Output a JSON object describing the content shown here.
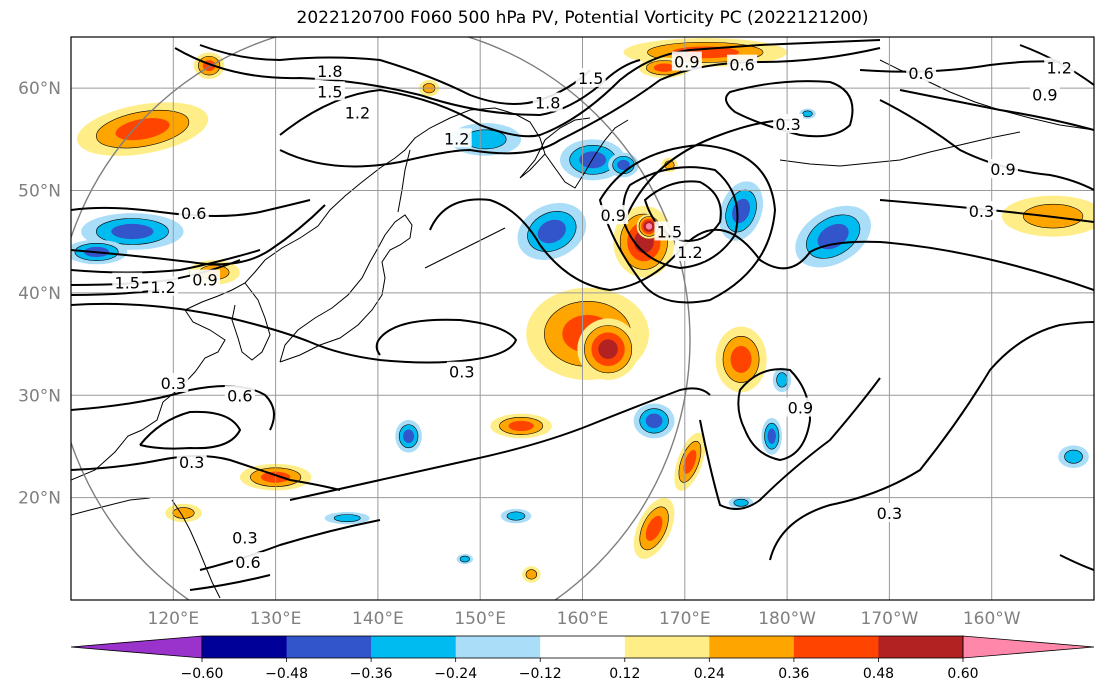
{
  "title": "2022120700 F060 500 hPa PV, Potential Vorticity PC (2022121200)",
  "map": {
    "lon_range_deg_east": [
      110,
      210
    ],
    "lat_range_deg": [
      10,
      65
    ],
    "gridlines": true,
    "lat_ticks": [
      {
        "lat": 60,
        "label": "60°N"
      },
      {
        "lat": 50,
        "label": "50°N"
      },
      {
        "lat": 40,
        "label": "40°N"
      },
      {
        "lat": 30,
        "label": "30°N"
      },
      {
        "lat": 20,
        "label": "20°N"
      }
    ],
    "lon_ticks": [
      {
        "lon": 120,
        "label": "120°E"
      },
      {
        "lon": 130,
        "label": "130°E"
      },
      {
        "lon": 140,
        "label": "140°E"
      },
      {
        "lon": 150,
        "label": "150°E"
      },
      {
        "lon": 160,
        "label": "160°E"
      },
      {
        "lon": 170,
        "label": "170°E"
      },
      {
        "lon": 180,
        "label": "180°W"
      },
      {
        "lon": 190,
        "label": "170°W"
      },
      {
        "lon": 200,
        "label": "160°W"
      }
    ],
    "contour_labels": [
      {
        "text": "1.8",
        "lon": 135.3,
        "lat": 61.7
      },
      {
        "text": "1.5",
        "lon": 135.3,
        "lat": 59.7
      },
      {
        "text": "1.2",
        "lon": 138.0,
        "lat": 57.6
      },
      {
        "text": "1.2",
        "lon": 147.7,
        "lat": 55.1
      },
      {
        "text": "1.8",
        "lon": 156.6,
        "lat": 58.6
      },
      {
        "text": "1.5",
        "lon": 160.8,
        "lat": 61.0
      },
      {
        "text": "0.9",
        "lon": 170.2,
        "lat": 62.6
      },
      {
        "text": "0.6",
        "lon": 175.6,
        "lat": 62.3
      },
      {
        "text": "0.6",
        "lon": 193.1,
        "lat": 61.5
      },
      {
        "text": "1.2",
        "lon": 206.6,
        "lat": 62.0
      },
      {
        "text": "0.9",
        "lon": 205.2,
        "lat": 59.4
      },
      {
        "text": "0.3",
        "lon": 180.1,
        "lat": 56.5
      },
      {
        "text": "0.9",
        "lon": 201.1,
        "lat": 52.1
      },
      {
        "text": "0.3",
        "lon": 199.0,
        "lat": 48.0
      },
      {
        "text": "0.9",
        "lon": 163.0,
        "lat": 47.6
      },
      {
        "text": "1.5",
        "lon": 168.5,
        "lat": 46.0
      },
      {
        "text": "1.2",
        "lon": 170.5,
        "lat": 44.0
      },
      {
        "text": "0.6",
        "lon": 122.0,
        "lat": 47.8
      },
      {
        "text": "0.9",
        "lon": 123.1,
        "lat": 41.3
      },
      {
        "text": "1.5",
        "lon": 115.5,
        "lat": 41.0
      },
      {
        "text": "1.2",
        "lon": 119.0,
        "lat": 40.6
      },
      {
        "text": "0.3",
        "lon": 148.2,
        "lat": 32.3
      },
      {
        "text": "0.3",
        "lon": 120.0,
        "lat": 31.2
      },
      {
        "text": "0.6",
        "lon": 126.5,
        "lat": 30.0
      },
      {
        "text": "0.9",
        "lon": 181.3,
        "lat": 28.8
      },
      {
        "text": "0.3",
        "lon": 121.8,
        "lat": 23.5
      },
      {
        "text": "0.3",
        "lon": 127.0,
        "lat": 16.1
      },
      {
        "text": "0.6",
        "lon": 127.3,
        "lat": 13.7
      },
      {
        "text": "0.3",
        "lon": 190.0,
        "lat": 18.5
      }
    ]
  },
  "colorbar": {
    "colors": [
      "#9933cc",
      "#000099",
      "#3355cc",
      "#00bbf0",
      "#aaddf8",
      "#ffffff",
      "#ffee88",
      "#ffa500",
      "#ff4400",
      "#b22222",
      "#ff88aa"
    ],
    "boundaries": [
      -0.6,
      -0.48,
      -0.36,
      -0.24,
      -0.12,
      0.12,
      0.24,
      0.36,
      0.48,
      0.6
    ],
    "tick_labels": [
      "−0.60",
      "−0.48",
      "−0.36",
      "−0.24",
      "−0.12",
      "0.12",
      "0.24",
      "0.36",
      "0.48",
      "0.60"
    ]
  },
  "shading": [
    {
      "lon": 123.5,
      "lat": 62.2,
      "rx": 1.5,
      "ry": 1.3,
      "v": 0.36,
      "r": 0
    },
    {
      "lon": 117.0,
      "lat": 56.0,
      "rx": 6.5,
      "ry": 2.4,
      "v": 0.36,
      "r": -10
    },
    {
      "lon": 116.0,
      "lat": 46.0,
      "rx": 5.0,
      "ry": 1.8,
      "v": -0.36,
      "r": 0
    },
    {
      "lon": 124.0,
      "lat": 42.0,
      "rx": 2.5,
      "ry": 1.2,
      "v": 0.24,
      "r": 0
    },
    {
      "lon": 150.5,
      "lat": 55.0,
      "rx": 3.5,
      "ry": 1.6,
      "v": -0.24,
      "r": 0
    },
    {
      "lon": 161.0,
      "lat": 53.0,
      "rx": 3.2,
      "ry": 2.0,
      "v": -0.36,
      "r": 0
    },
    {
      "lon": 157.0,
      "lat": 46.0,
      "rx": 3.5,
      "ry": 2.6,
      "v": -0.36,
      "r": -25
    },
    {
      "lon": 166.0,
      "lat": 45.0,
      "rx": 3.0,
      "ry": 3.5,
      "v": 0.48,
      "r": 0
    },
    {
      "lon": 166.5,
      "lat": 46.5,
      "rx": 1.2,
      "ry": 1.2,
      "v": 0.6,
      "r": 0
    },
    {
      "lon": 175.5,
      "lat": 48.0,
      "rx": 2.0,
      "ry": 3.0,
      "v": -0.36,
      "r": 20
    },
    {
      "lon": 184.5,
      "lat": 45.5,
      "rx": 4.0,
      "ry": 2.6,
      "v": -0.36,
      "r": -30
    },
    {
      "lon": 172.0,
      "lat": 63.5,
      "rx": 8.0,
      "ry": 1.4,
      "v": 0.36,
      "r": 0
    },
    {
      "lon": 160.5,
      "lat": 36.0,
      "rx": 6.0,
      "ry": 4.5,
      "v": 0.36,
      "r": 0
    },
    {
      "lon": 162.5,
      "lat": 34.5,
      "rx": 3.0,
      "ry": 3.0,
      "v": 0.48,
      "r": 0
    },
    {
      "lon": 175.5,
      "lat": 33.5,
      "rx": 2.5,
      "ry": 3.2,
      "v": 0.36,
      "r": 0
    },
    {
      "lon": 206.0,
      "lat": 47.5,
      "rx": 5.0,
      "ry": 2.0,
      "v": 0.24,
      "r": 0
    },
    {
      "lon": 143.0,
      "lat": 26.0,
      "rx": 1.3,
      "ry": 1.6,
      "v": -0.36,
      "r": 0
    },
    {
      "lon": 154.0,
      "lat": 27.0,
      "rx": 3.0,
      "ry": 1.2,
      "v": 0.36,
      "r": 0
    },
    {
      "lon": 167.0,
      "lat": 27.5,
      "rx": 2.0,
      "ry": 1.7,
      "v": -0.36,
      "r": 0
    },
    {
      "lon": 170.5,
      "lat": 23.5,
      "rx": 1.2,
      "ry": 3.0,
      "v": 0.36,
      "r": 20
    },
    {
      "lon": 167.0,
      "lat": 17.0,
      "rx": 1.6,
      "ry": 3.2,
      "v": 0.36,
      "r": 25
    },
    {
      "lon": 178.5,
      "lat": 26.0,
      "rx": 1.0,
      "ry": 1.8,
      "v": -0.36,
      "r": 0
    },
    {
      "lon": 179.5,
      "lat": 31.5,
      "rx": 0.9,
      "ry": 1.2,
      "v": -0.24,
      "r": 0
    },
    {
      "lon": 130.0,
      "lat": 22.0,
      "rx": 3.5,
      "ry": 1.3,
      "v": 0.36,
      "r": 0
    },
    {
      "lon": 121.0,
      "lat": 18.5,
      "rx": 1.8,
      "ry": 0.9,
      "v": 0.24,
      "r": 0
    },
    {
      "lon": 137.0,
      "lat": 18.0,
      "rx": 2.2,
      "ry": 0.6,
      "v": -0.24,
      "r": 0
    },
    {
      "lon": 153.5,
      "lat": 18.2,
      "rx": 1.5,
      "ry": 0.7,
      "v": -0.24,
      "r": 0
    },
    {
      "lon": 168.0,
      "lat": 62.0,
      "rx": 2.5,
      "ry": 1.0,
      "v": 0.36,
      "r": 0
    },
    {
      "lon": 164.0,
      "lat": 52.5,
      "rx": 1.5,
      "ry": 1.2,
      "v": -0.36,
      "r": 0
    },
    {
      "lon": 112.5,
      "lat": 44.0,
      "rx": 3.0,
      "ry": 1.2,
      "v": -0.36,
      "r": 0
    },
    {
      "lon": 145.0,
      "lat": 60.0,
      "rx": 1.0,
      "ry": 0.8,
      "v": 0.24,
      "r": 0
    },
    {
      "lon": 208.0,
      "lat": 24.0,
      "rx": 1.5,
      "ry": 1.1,
      "v": -0.24,
      "r": 0
    },
    {
      "lon": 175.5,
      "lat": 19.5,
      "rx": 1.2,
      "ry": 0.6,
      "v": -0.24,
      "r": 0
    },
    {
      "lon": 155.0,
      "lat": 12.5,
      "rx": 0.9,
      "ry": 0.8,
      "v": 0.24,
      "r": 0
    },
    {
      "lon": 148.5,
      "lat": 14.0,
      "rx": 0.8,
      "ry": 0.5,
      "v": -0.24,
      "r": 0
    },
    {
      "lon": 168.5,
      "lat": 52.5,
      "rx": 0.8,
      "ry": 0.7,
      "v": 0.24,
      "r": 0
    },
    {
      "lon": 182.0,
      "lat": 57.5,
      "rx": 0.8,
      "ry": 0.5,
      "v": -0.24,
      "r": 0
    }
  ]
}
